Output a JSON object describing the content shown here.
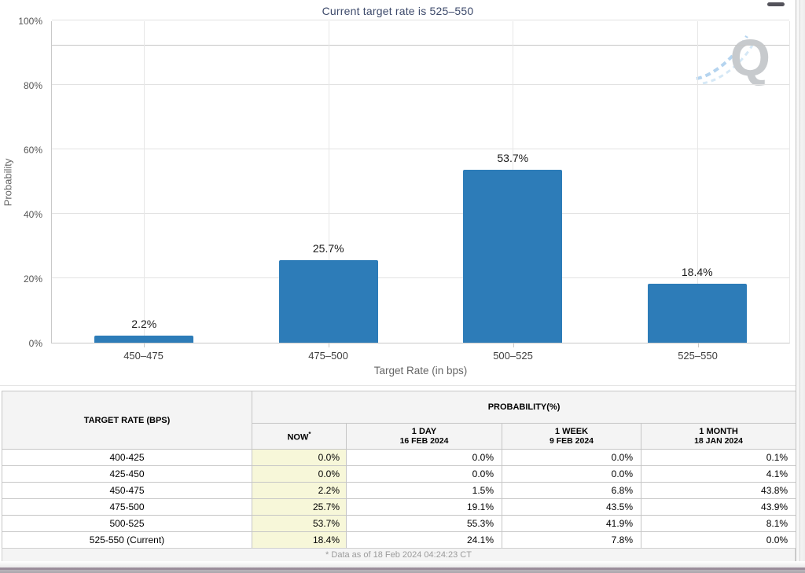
{
  "chart_data": {
    "type": "bar",
    "title": "Current target rate is 525–550",
    "categories": [
      "450–475",
      "475–500",
      "500–525",
      "525–550"
    ],
    "values": [
      2.2,
      25.7,
      53.7,
      18.4
    ],
    "value_labels": [
      "2.2%",
      "25.7%",
      "53.7%",
      "18.4%"
    ],
    "xlabel": "Target Rate (in bps)",
    "ylabel": "Probability",
    "ylim": [
      0,
      100
    ],
    "y_ticks": [
      {
        "value": 0,
        "label": "0%"
      },
      {
        "value": 20,
        "label": "20%"
      },
      {
        "value": 40,
        "label": "40%"
      },
      {
        "value": 60,
        "label": "60%"
      },
      {
        "value": 80,
        "label": "80%"
      },
      {
        "value": 100,
        "label": "100%"
      }
    ],
    "extra_gridline_value": 92.2,
    "grid": true,
    "legend": "none",
    "bar_color": "#2d7cb8"
  },
  "watermark": {
    "letter": "Q"
  },
  "table": {
    "target_rate_header": "TARGET RATE (BPS)",
    "probability_header": "PROBABILITY(%)",
    "now": {
      "label": "NOW",
      "sup": "*"
    },
    "columns": [
      {
        "top": "1 DAY",
        "bottom": "16 FEB 2024"
      },
      {
        "top": "1 WEEK",
        "bottom": "9 FEB 2024"
      },
      {
        "top": "1 MONTH",
        "bottom": "18 JAN 2024"
      }
    ],
    "rows": [
      {
        "rate": "400-425",
        "now": "0.0%",
        "day": "0.0%",
        "week": "0.0%",
        "month": "0.1%"
      },
      {
        "rate": "425-450",
        "now": "0.0%",
        "day": "0.0%",
        "week": "0.0%",
        "month": "4.1%"
      },
      {
        "rate": "450-475",
        "now": "2.2%",
        "day": "1.5%",
        "week": "6.8%",
        "month": "43.8%"
      },
      {
        "rate": "475-500",
        "now": "25.7%",
        "day": "19.1%",
        "week": "43.5%",
        "month": "43.9%"
      },
      {
        "rate": "500-525",
        "now": "53.7%",
        "day": "55.3%",
        "week": "41.9%",
        "month": "8.1%"
      },
      {
        "rate": "525-550 (Current)",
        "now": "18.4%",
        "day": "24.1%",
        "week": "7.8%",
        "month": "0.0%"
      }
    ]
  },
  "footer": {
    "note": "* Data as of 18 Feb 2024 04:24:23 CT"
  },
  "colors": {
    "bar": "#2d7cb8",
    "title_navy": "#3d4a6b",
    "now_column_bg": "#f7f7d9",
    "watermark_gray": "#c7cacd",
    "swoosh_blue": "#8fc0e8"
  }
}
